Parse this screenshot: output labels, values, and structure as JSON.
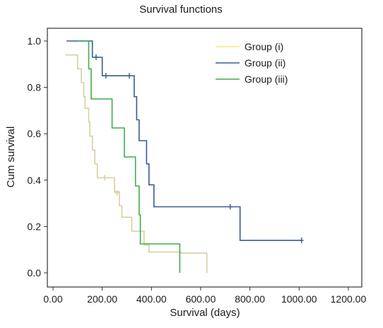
{
  "chart_data": {
    "type": "line",
    "title": "Survival functions",
    "xlabel": "Survival (days)",
    "ylabel": "Cum survival",
    "xlim": [
      0,
      1200
    ],
    "ylim": [
      0,
      1
    ],
    "x_ticks": [
      "0.00",
      "200.00",
      "400.00",
      "600.00",
      "800.00",
      "1000.00",
      "1200.00"
    ],
    "y_ticks": [
      "0.0",
      "0.2",
      "0.4",
      "0.6",
      "0.8",
      "1.0"
    ],
    "x_tick_values": [
      0,
      200,
      400,
      600,
      800,
      1000,
      1200
    ],
    "y_tick_values": [
      0,
      0.2,
      0.4,
      0.6,
      0.8,
      1.0
    ],
    "grid": false,
    "legend_position": "top-right",
    "series": [
      {
        "name": "Group (i)",
        "color": "#d6cfa0",
        "legend_color": "#f2ea78",
        "steps": [
          [
            50,
            0.94
          ],
          [
            100,
            0.88
          ],
          [
            115,
            0.82
          ],
          [
            125,
            0.76
          ],
          [
            130,
            0.71
          ],
          [
            145,
            0.65
          ],
          [
            150,
            0.59
          ],
          [
            160,
            0.53
          ],
          [
            170,
            0.47
          ],
          [
            180,
            0.41
          ],
          [
            250,
            0.35
          ],
          [
            270,
            0.29
          ],
          [
            280,
            0.24
          ],
          [
            320,
            0.18
          ],
          [
            360,
            0.18
          ],
          [
            370,
            0.12
          ],
          [
            390,
            0.09
          ],
          [
            470,
            0.09
          ],
          [
            480,
            0.09
          ],
          [
            520,
            0.085
          ],
          [
            620,
            0.085
          ],
          [
            625,
            0.0
          ]
        ],
        "censored": [
          [
            210,
            0.41
          ],
          [
            260,
            0.345
          ]
        ]
      },
      {
        "name": "Group (ii)",
        "color": "#3a5a9a",
        "legend_color": "#3a5a9a",
        "steps": [
          [
            55,
            1.0
          ],
          [
            160,
            0.93
          ],
          [
            200,
            0.85
          ],
          [
            330,
            0.76
          ],
          [
            340,
            0.66
          ],
          [
            350,
            0.57
          ],
          [
            380,
            0.47
          ],
          [
            390,
            0.38
          ],
          [
            410,
            0.285
          ],
          [
            760,
            0.14
          ],
          [
            1010,
            0.14
          ]
        ],
        "censored": [
          [
            175,
            0.93
          ],
          [
            215,
            0.85
          ],
          [
            310,
            0.85
          ],
          [
            720,
            0.285
          ],
          [
            1010,
            0.14
          ]
        ]
      },
      {
        "name": "Group (iii)",
        "color": "#3fae48",
        "legend_color": "#3fae48",
        "steps": [
          [
            100,
            1.0
          ],
          [
            145,
            0.88
          ],
          [
            155,
            0.75
          ],
          [
            240,
            0.625
          ],
          [
            290,
            0.5
          ],
          [
            335,
            0.375
          ],
          [
            350,
            0.25
          ],
          [
            355,
            0.125
          ],
          [
            515,
            0.0
          ]
        ],
        "censored": []
      }
    ]
  }
}
